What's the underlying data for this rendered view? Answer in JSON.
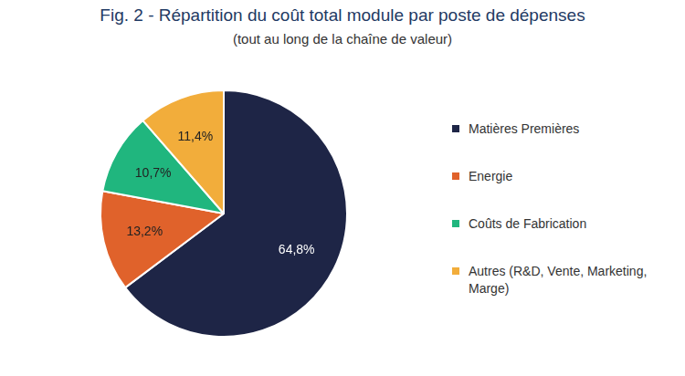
{
  "chart_data": {
    "type": "pie",
    "title": "Fig. 2 - Répartition du coût total module par poste de dépenses",
    "subtitle": "(tout au long de la chaîne de valeur)",
    "categories": [
      "Matières Premières",
      "Energie",
      "Coûts de Fabrication",
      "Autres (R&D, Vente, Marketing, Marge)"
    ],
    "values": [
      64.8,
      13.2,
      10.7,
      11.4
    ],
    "value_labels": [
      "64,8%",
      "13,2%",
      "10,7%",
      "11,4%"
    ],
    "colors": [
      "#1e2546",
      "#e0622b",
      "#20b67e",
      "#f2ad3b"
    ],
    "legend": "right",
    "data_labels": true
  }
}
